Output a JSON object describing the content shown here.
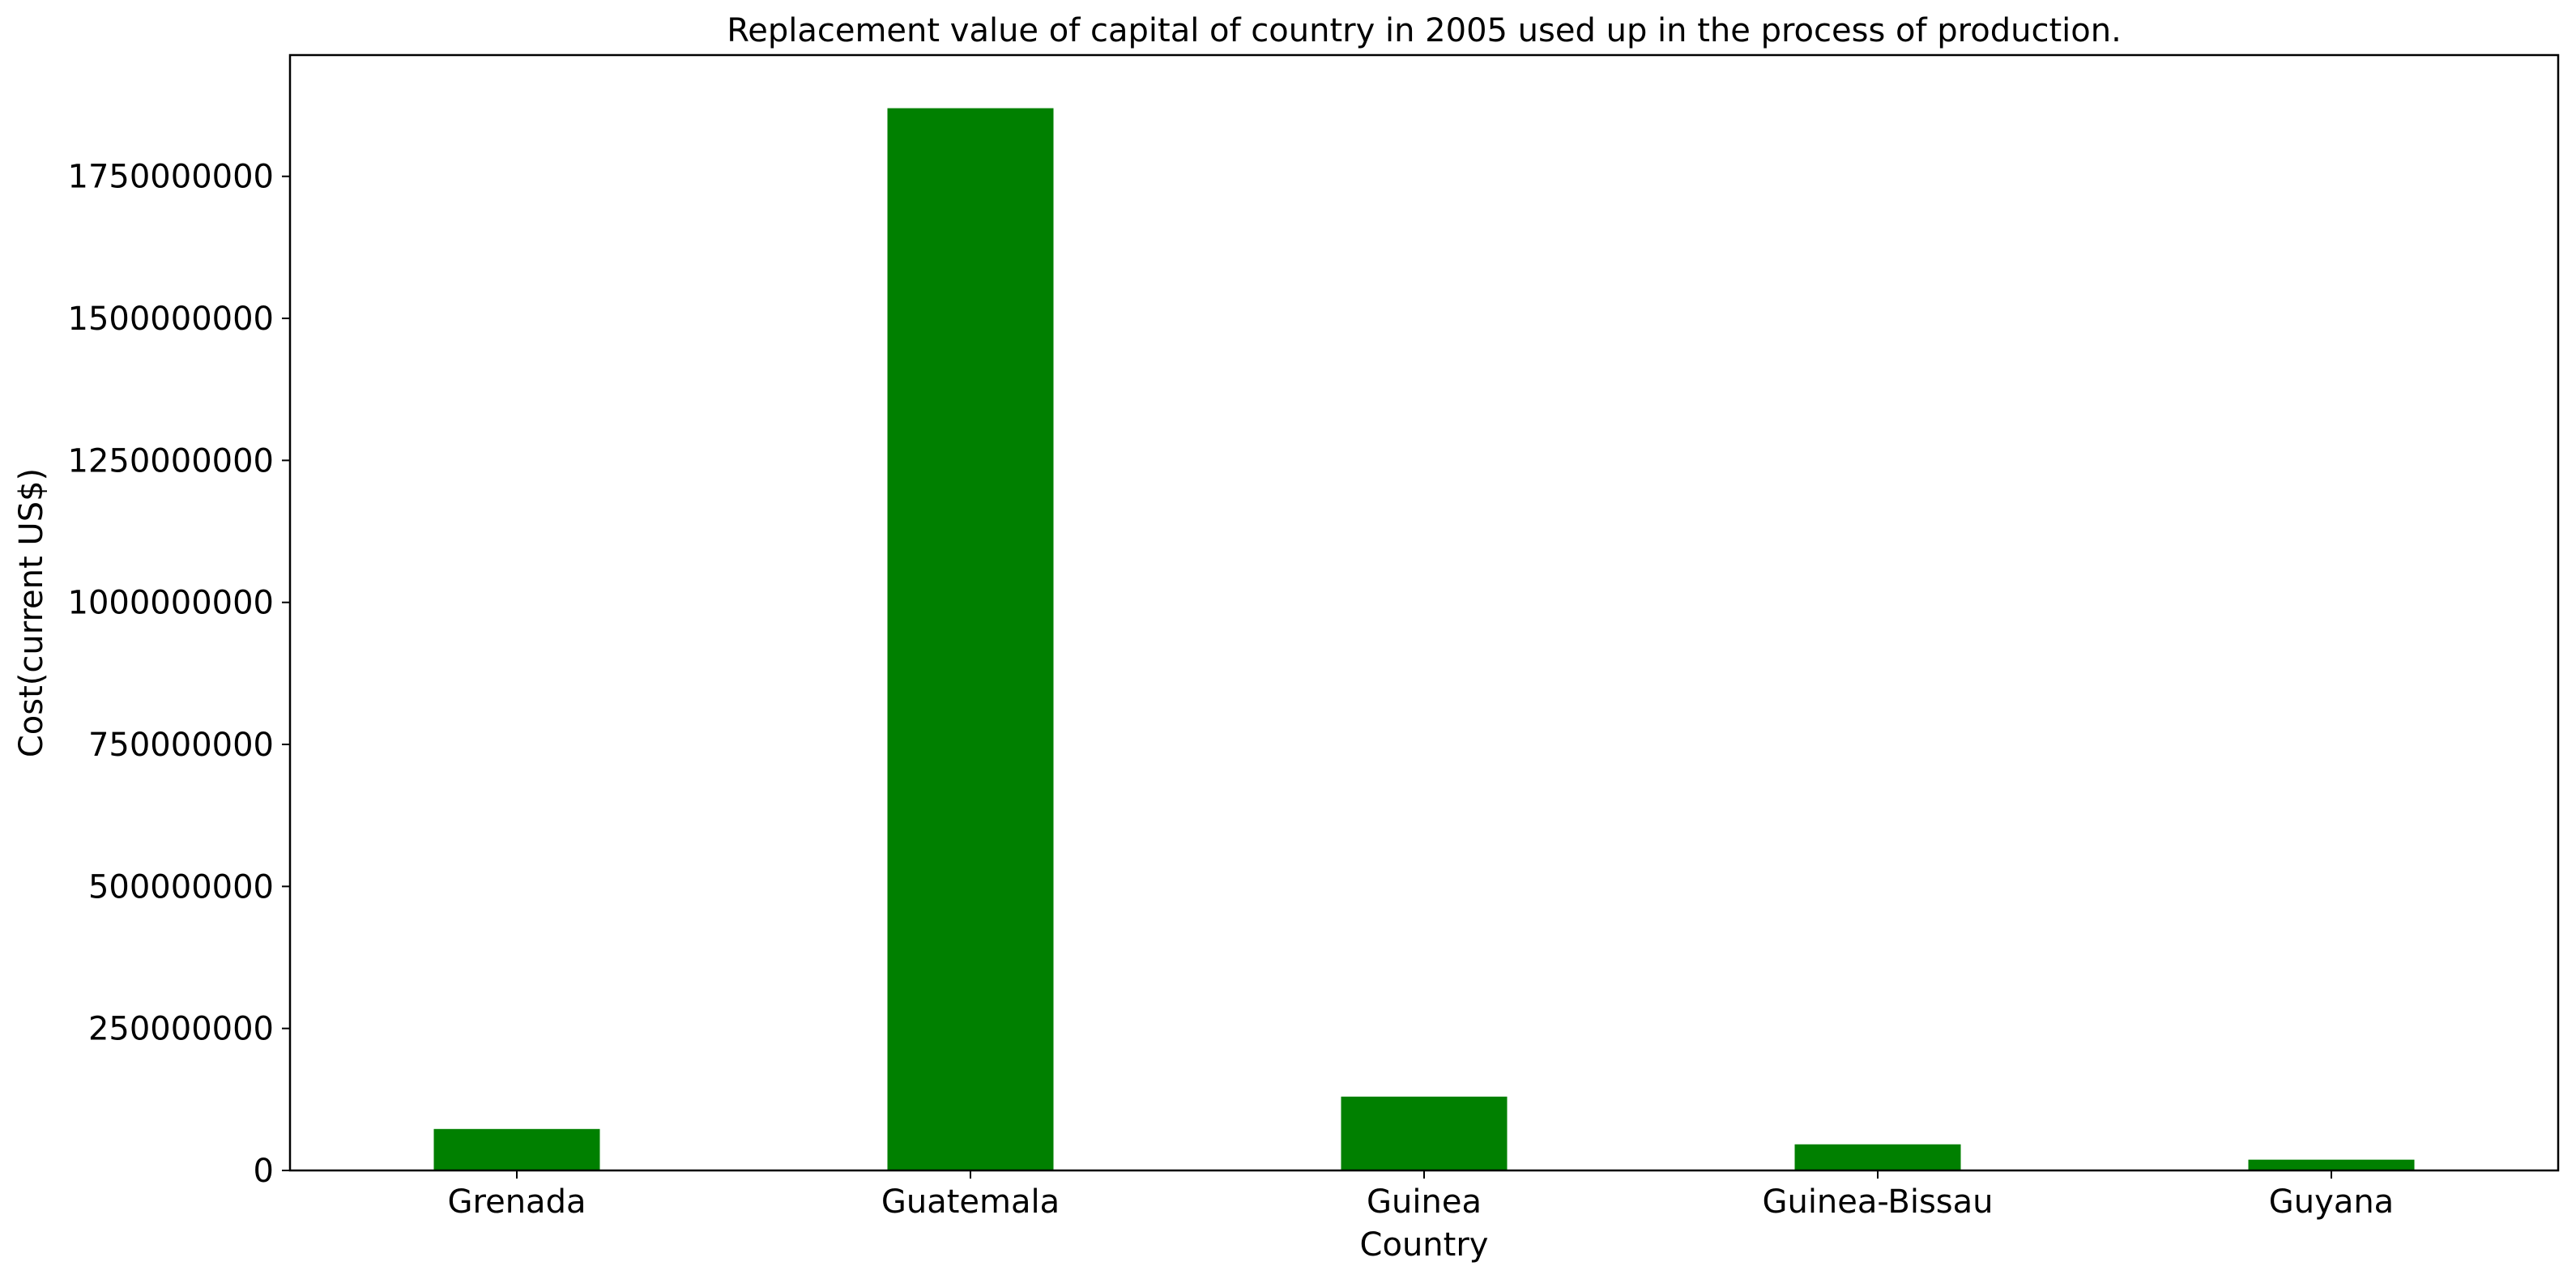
{
  "chart_data": {
    "type": "bar",
    "title": "Replacement value of capital of country in 2005 used up in the process of production.",
    "xlabel": "Country",
    "ylabel": "Cost(current US$)",
    "categories": [
      "Grenada",
      "Guatemala",
      "Guinea",
      "Guinea-Bissau",
      "Guyana"
    ],
    "values": [
      73000000,
      1870000000,
      130000000,
      46000000,
      19000000
    ],
    "ylim": [
      0,
      1963500000
    ],
    "yticks": [
      0,
      250000000,
      500000000,
      750000000,
      1000000000,
      1250000000,
      1500000000,
      1750000000
    ],
    "ytick_labels": [
      "0",
      "250000000",
      "500000000",
      "750000000",
      "1000000000",
      "1250000000",
      "1500000000",
      "1750000000"
    ],
    "bar_color": "#008000",
    "grid": false,
    "legend": "none"
  }
}
